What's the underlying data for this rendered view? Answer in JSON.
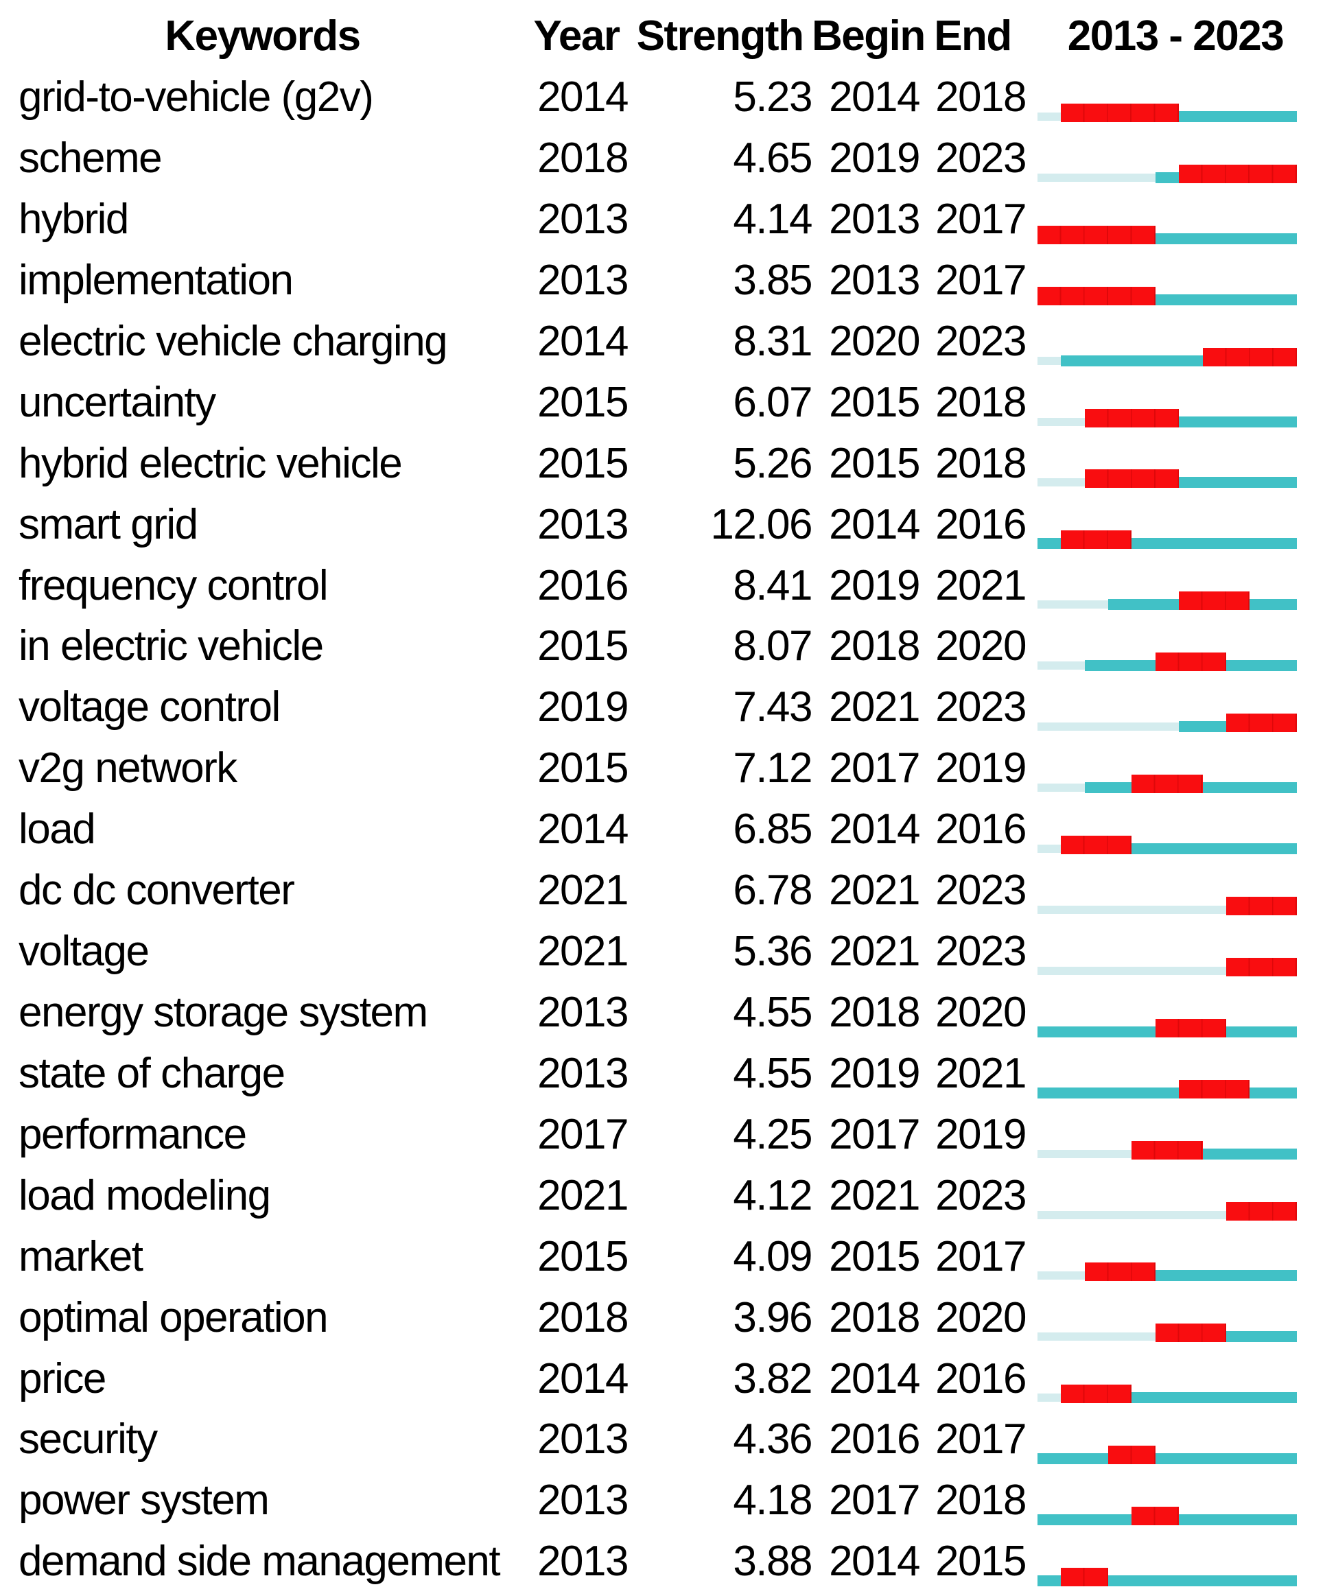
{
  "chart_data": {
    "type": "table",
    "header": {
      "keywords": "Keywords",
      "year": "Year",
      "strength": "Strength",
      "begin": "Begin",
      "end": "End",
      "range": "2013 - 2023"
    },
    "timeline": {
      "start": 2013,
      "end": 2023
    },
    "colors": {
      "burst": "#f90d10",
      "active": "#41c1c6",
      "inactive": "#d4ecee",
      "text": "#000000"
    },
    "rows": [
      {
        "keyword": "grid-to-vehicle (g2v)",
        "year": "2014",
        "strength": "5.23",
        "begin": "2014",
        "end": "2018"
      },
      {
        "keyword": "scheme",
        "year": "2018",
        "strength": "4.65",
        "begin": "2019",
        "end": "2023"
      },
      {
        "keyword": "hybrid",
        "year": "2013",
        "strength": "4.14",
        "begin": "2013",
        "end": "2017"
      },
      {
        "keyword": "implementation",
        "year": "2013",
        "strength": "3.85",
        "begin": "2013",
        "end": "2017"
      },
      {
        "keyword": "electric vehicle charging",
        "year": "2014",
        "strength": "8.31",
        "begin": "2020",
        "end": "2023"
      },
      {
        "keyword": "uncertainty",
        "year": "2015",
        "strength": "6.07",
        "begin": "2015",
        "end": "2018"
      },
      {
        "keyword": "hybrid electric vehicle",
        "year": "2015",
        "strength": "5.26",
        "begin": "2015",
        "end": "2018"
      },
      {
        "keyword": "smart grid",
        "year": "2013",
        "strength": "12.06",
        "begin": "2014",
        "end": "2016"
      },
      {
        "keyword": "frequency control",
        "year": "2016",
        "strength": "8.41",
        "begin": "2019",
        "end": "2021"
      },
      {
        "keyword": "in electric vehicle",
        "year": "2015",
        "strength": "8.07",
        "begin": "2018",
        "end": "2020"
      },
      {
        "keyword": "voltage control",
        "year": "2019",
        "strength": "7.43",
        "begin": "2021",
        "end": "2023"
      },
      {
        "keyword": "v2g network",
        "year": "2015",
        "strength": "7.12",
        "begin": "2017",
        "end": "2019"
      },
      {
        "keyword": "load",
        "year": "2014",
        "strength": "6.85",
        "begin": "2014",
        "end": "2016"
      },
      {
        "keyword": "dc dc converter",
        "year": "2021",
        "strength": "6.78",
        "begin": "2021",
        "end": "2023"
      },
      {
        "keyword": "voltage",
        "year": "2021",
        "strength": "5.36",
        "begin": "2021",
        "end": "2023"
      },
      {
        "keyword": "energy storage system",
        "year": "2013",
        "strength": "4.55",
        "begin": "2018",
        "end": "2020"
      },
      {
        "keyword": "state of charge",
        "year": "2013",
        "strength": "4.55",
        "begin": "2019",
        "end": "2021"
      },
      {
        "keyword": "performance",
        "year": "2017",
        "strength": "4.25",
        "begin": "2017",
        "end": "2019"
      },
      {
        "keyword": "load modeling",
        "year": "2021",
        "strength": "4.12",
        "begin": "2021",
        "end": "2023"
      },
      {
        "keyword": "market",
        "year": "2015",
        "strength": "4.09",
        "begin": "2015",
        "end": "2017"
      },
      {
        "keyword": "optimal operation",
        "year": "2018",
        "strength": "3.96",
        "begin": "2018",
        "end": "2020"
      },
      {
        "keyword": "price",
        "year": "2014",
        "strength": "3.82",
        "begin": "2014",
        "end": "2016"
      },
      {
        "keyword": "security",
        "year": "2013",
        "strength": "4.36",
        "begin": "2016",
        "end": "2017"
      },
      {
        "keyword": "power system",
        "year": "2013",
        "strength": "4.18",
        "begin": "2017",
        "end": "2018"
      },
      {
        "keyword": "demand side management",
        "year": "2013",
        "strength": "3.88",
        "begin": "2014",
        "end": "2015"
      }
    ]
  }
}
